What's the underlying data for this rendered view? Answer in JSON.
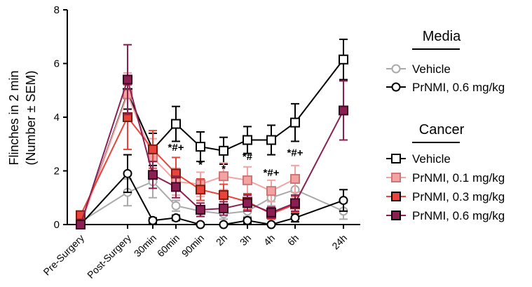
{
  "chart_data": {
    "type": "line",
    "ylabel_line1": "Flinches in 2 min",
    "ylabel_line2": "(Number ± SEM)",
    "ylim": [
      0,
      8
    ],
    "yticks": [
      "0",
      "2",
      "4",
      "6",
      "8"
    ],
    "categories": [
      "Pre-Surgery",
      "Post-Surgery",
      "30min",
      "60min",
      "90min",
      "2h",
      "3h",
      "4h",
      "6h",
      "24h"
    ],
    "grid": false,
    "legend_position": "right",
    "legend_groups": [
      {
        "title": "Media",
        "series_index": [
          0,
          1
        ]
      },
      {
        "title": "Cancer",
        "series_index": [
          2,
          3,
          4,
          5
        ]
      }
    ],
    "series": [
      {
        "name": "Vehicle",
        "group": "Media",
        "color": "#aaaaaa",
        "marker": "circle",
        "fill": "#ffffff",
        "values": [
          0.1,
          1.2,
          1.6,
          0.7,
          0.5,
          0.4,
          0.5,
          1.0,
          1.3,
          0.5
        ],
        "errors": [
          0.1,
          0.5,
          0.6,
          0.2,
          0.2,
          0.2,
          0.2,
          0.3,
          0.5,
          0.3
        ]
      },
      {
        "name": "PrNMI, 0.6 mg/kg",
        "group": "Media",
        "color": "#000000",
        "marker": "circle",
        "fill": "#ffffff",
        "values": [
          0.0,
          1.9,
          0.15,
          0.25,
          0.0,
          0.0,
          0.15,
          0.0,
          0.25,
          0.9
        ],
        "errors": [
          0.05,
          0.7,
          0.1,
          0.1,
          0.05,
          0.05,
          0.1,
          0.05,
          0.15,
          0.4
        ]
      },
      {
        "name": "Vehicle",
        "group": "Cancer",
        "color": "#000000",
        "marker": "square",
        "fill": "#ffffff",
        "values": [
          0.0,
          4.9,
          2.8,
          3.75,
          2.9,
          2.75,
          3.15,
          3.15,
          3.8,
          6.15
        ],
        "errors": [
          0.1,
          0.6,
          0.6,
          0.65,
          0.55,
          0.5,
          0.5,
          0.55,
          0.7,
          0.75
        ]
      },
      {
        "name": "PrNMI, 0.1 mg/kg",
        "group": "Cancer",
        "color": "#f4a3a3",
        "marker": "square",
        "fill": "#f4a3a3",
        "values": [
          0.0,
          4.85,
          2.5,
          1.6,
          1.5,
          1.8,
          1.65,
          1.25,
          1.7,
          null
        ],
        "errors": [
          0.1,
          0.8,
          0.7,
          0.5,
          0.45,
          0.5,
          0.5,
          0.4,
          0.5,
          null
        ]
      },
      {
        "name": "PrNMI, 0.3 mg/kg",
        "group": "Cancer",
        "color": "#e8443a",
        "marker": "square",
        "fill": "#e8443a",
        "values": [
          0.35,
          4.0,
          2.8,
          1.9,
          1.3,
          1.1,
          0.85,
          0.4,
          0.75,
          null
        ],
        "errors": [
          0.1,
          1.2,
          0.7,
          0.6,
          0.4,
          0.4,
          0.3,
          0.2,
          0.3,
          null
        ]
      },
      {
        "name": "PrNMI, 0.6 mg/kg",
        "group": "Cancer",
        "color": "#8b1f52",
        "marker": "square",
        "fill": "#8b1f52",
        "values": [
          0.0,
          5.4,
          1.85,
          1.4,
          0.55,
          0.6,
          0.8,
          0.45,
          0.8,
          4.25
        ],
        "errors": [
          0.1,
          1.3,
          0.5,
          0.4,
          0.25,
          0.25,
          0.3,
          0.2,
          0.3,
          1.1
        ]
      }
    ],
    "annotations": [
      {
        "text": "*#+",
        "category": "60min",
        "y": 2.75
      },
      {
        "text": "*",
        "category": "90min",
        "y": 2.1
      },
      {
        "text": "*",
        "category": "2h",
        "y": 1.95
      },
      {
        "text": "*#",
        "category": "3h",
        "y": 2.4
      },
      {
        "text": "*#+",
        "category": "4h",
        "y": 1.8
      },
      {
        "text": "*#+",
        "category": "6h",
        "y": 2.55
      }
    ]
  }
}
